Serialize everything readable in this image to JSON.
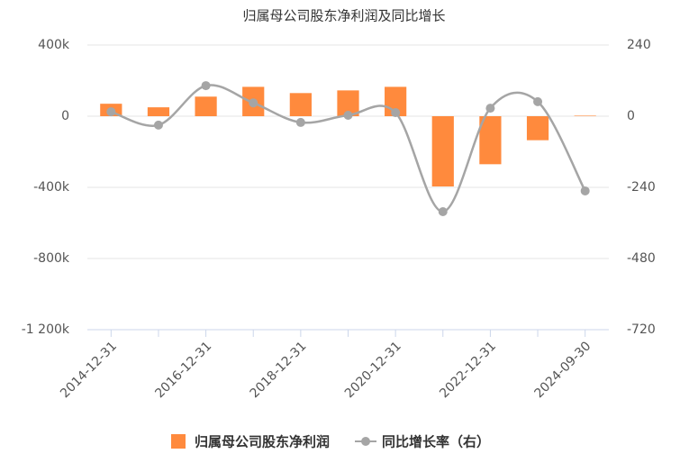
{
  "chart_data": {
    "type": "bar-line",
    "title": "归属母公司股东净利润及同比增长",
    "categories": [
      "2014-12-31",
      null,
      "2016-12-31",
      null,
      "2018-12-31",
      null,
      "2020-12-31",
      null,
      "2022-12-31",
      null,
      "2024-09-30"
    ],
    "series": [
      {
        "name": "归属母公司股东净利润",
        "type": "bar",
        "color": "#ff8a3d",
        "values": [
          70000,
          50000,
          110000,
          165000,
          130000,
          145000,
          165000,
          -395000,
          -270000,
          -135000,
          3000
        ]
      },
      {
        "name": "同比增长率（右）",
        "type": "line",
        "axis": "y2",
        "color": "#a5a5a5",
        "values": [
          15,
          -30,
          103,
          45,
          -21,
          3,
          12,
          -322,
          27,
          49,
          -252
        ]
      }
    ],
    "ylim": [
      -1200000,
      400000
    ],
    "yticks": [
      {
        "value": 400000,
        "label": "400k"
      },
      0,
      {
        "value": -400000,
        "label": "-400k"
      },
      {
        "value": -800000,
        "label": "-800k"
      },
      {
        "value": -1200000,
        "label": "-1 200k"
      }
    ],
    "y2lim": [
      -720,
      240
    ],
    "y2ticks": [
      240,
      0,
      -240,
      -480,
      -720
    ],
    "grid": true,
    "legend": "bottom"
  }
}
